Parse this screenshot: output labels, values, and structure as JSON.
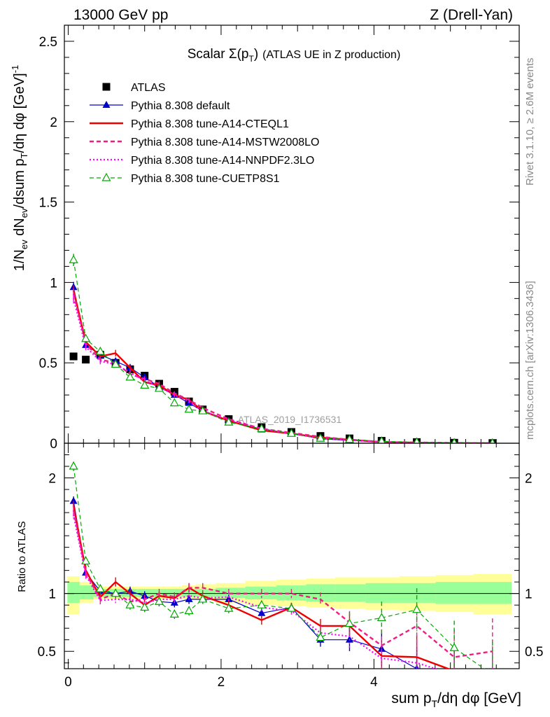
{
  "header": {
    "left": "13000 GeV pp",
    "right": "Z (Drell-Yan)"
  },
  "side_text": {
    "rivet": "Rivet 3.1.10, ≥ 2.6M events",
    "mcplots": "mcplots.cern.ch [arXiv:1306.3436]"
  },
  "chart_data": {
    "type": "line",
    "title": "Scalar Σ(p_T) (ATLAS UE in Z production)",
    "watermark": "ATLAS_2019_I1736531",
    "xlabel": "sum p_T/dη dφ [GeV]",
    "ylabel": "1/N_ev dN_ev/dsum p_T/dη dφ [GeV]^-1",
    "ratio_ylabel": "Ratio to ATLAS",
    "xlim": [
      -0.05,
      5.9
    ],
    "ylim": [
      0,
      2.6
    ],
    "ratio_ylim": [
      0.35,
      2.3
    ],
    "x_ticks": [
      "0",
      "2",
      "4"
    ],
    "y_ticks": [
      "0",
      "0.5",
      "1",
      "1.5",
      "2",
      "2.5"
    ],
    "ratio_y_ticks": [
      "0.5",
      "1",
      "2"
    ],
    "legend_position": "top-left",
    "x": [
      0.07,
      0.23,
      0.42,
      0.62,
      0.81,
      1.0,
      1.19,
      1.39,
      1.58,
      1.76,
      2.1,
      2.53,
      2.92,
      3.3,
      3.68,
      4.1,
      4.56,
      5.05,
      5.55
    ],
    "series": [
      {
        "name": "ATLAS",
        "style": "data",
        "color": "#000000",
        "values": [
          0.54,
          0.52,
          0.55,
          0.5,
          0.46,
          0.42,
          0.37,
          0.32,
          0.26,
          0.21,
          0.15,
          0.1,
          0.07,
          0.045,
          0.03,
          0.015,
          0.007,
          0.003,
          0.001
        ],
        "ratio": [
          1,
          1,
          1,
          1,
          1,
          1,
          1,
          1,
          1,
          1,
          1,
          1,
          1,
          1,
          1,
          1,
          1,
          1,
          1
        ]
      },
      {
        "name": "Pythia 8.308 default",
        "style": "blue-solid-triangle",
        "color": "#0000cc",
        "values": [
          0.97,
          0.61,
          0.55,
          0.51,
          0.47,
          0.41,
          0.35,
          0.3,
          0.25,
          0.2,
          0.14,
          0.085,
          0.062,
          0.028,
          0.018,
          0.008,
          0.0025,
          0.001,
          0.0003
        ],
        "ratio": [
          1.8,
          1.18,
          1.02,
          1.0,
          1.02,
          0.98,
          0.93,
          0.92,
          0.95,
          0.95,
          0.95,
          0.83,
          0.88,
          0.6,
          0.6,
          0.52,
          0.35,
          0.3,
          0.2
        ]
      },
      {
        "name": "Pythia 8.308 tune-A14-CTEQL1",
        "style": "red-solid",
        "color": "#ee0000",
        "values": [
          0.95,
          0.63,
          0.54,
          0.56,
          0.47,
          0.38,
          0.36,
          0.3,
          0.27,
          0.2,
          0.14,
          0.08,
          0.06,
          0.035,
          0.022,
          0.007,
          0.003,
          0.001,
          0.0003
        ],
        "ratio": [
          1.76,
          1.2,
          0.97,
          1.1,
          1.0,
          0.9,
          0.98,
          0.96,
          1.05,
          0.98,
          0.9,
          0.77,
          0.88,
          0.72,
          0.72,
          0.46,
          0.45,
          0.33,
          0.25
        ]
      },
      {
        "name": "Pythia 8.308 tune-A14-MSTW2008LO",
        "style": "magenta-dashed",
        "color": "#ee1e82",
        "values": [
          0.93,
          0.62,
          0.52,
          0.5,
          0.43,
          0.4,
          0.37,
          0.31,
          0.27,
          0.22,
          0.15,
          0.09,
          0.065,
          0.04,
          0.022,
          0.008,
          0.005,
          0.002,
          0.0005
        ],
        "ratio": [
          1.72,
          1.18,
          0.95,
          1.0,
          0.93,
          0.95,
          1.0,
          0.97,
          1.05,
          1.05,
          1.0,
          1.0,
          1.0,
          0.95,
          0.75,
          0.55,
          0.72,
          0.45,
          0.5
        ]
      },
      {
        "name": "Pythia 8.308 tune-A14-NNPDF2.3LO",
        "style": "magenta-dotted",
        "color": "#ff00ff",
        "values": [
          0.9,
          0.6,
          0.51,
          0.49,
          0.44,
          0.39,
          0.35,
          0.3,
          0.26,
          0.2,
          0.145,
          0.09,
          0.06,
          0.03,
          0.019,
          0.006,
          0.003,
          0.001,
          0.0003
        ],
        "ratio": [
          1.68,
          1.16,
          0.94,
          0.95,
          0.95,
          0.92,
          0.95,
          0.95,
          0.98,
          0.96,
          0.97,
          0.88,
          0.85,
          0.66,
          0.63,
          0.44,
          0.4,
          0.3,
          0.2
        ]
      },
      {
        "name": "Pythia 8.308 tune-CUETP8S1",
        "style": "green-dashed-open-triangle",
        "color": "#00aa00",
        "values": [
          1.14,
          0.65,
          0.57,
          0.49,
          0.41,
          0.36,
          0.34,
          0.25,
          0.21,
          0.2,
          0.13,
          0.09,
          0.06,
          0.03,
          0.023,
          0.012,
          0.006,
          0.0015,
          0.0003
        ],
        "ratio": [
          2.1,
          1.28,
          1.04,
          1.0,
          0.9,
          0.88,
          0.93,
          0.82,
          0.85,
          0.95,
          0.87,
          0.9,
          0.87,
          0.62,
          0.74,
          0.79,
          0.86,
          0.53,
          0.3
        ]
      }
    ],
    "uncertainty_band_ratio": {
      "inner_color": "#99ff99",
      "outer_color": "#ffff99",
      "inner": [
        [
          0.92,
          1.1
        ],
        [
          0.95,
          1.07
        ],
        [
          0.97,
          1.04
        ],
        [
          0.97,
          1.04
        ],
        [
          0.97,
          1.04
        ],
        [
          0.97,
          1.04
        ],
        [
          0.97,
          1.04
        ],
        [
          0.97,
          1.04
        ],
        [
          0.97,
          1.04
        ],
        [
          0.97,
          1.04
        ],
        [
          0.96,
          1.05
        ],
        [
          0.95,
          1.06
        ],
        [
          0.94,
          1.07
        ],
        [
          0.93,
          1.08
        ],
        [
          0.93,
          1.08
        ],
        [
          0.92,
          1.09
        ],
        [
          0.92,
          1.09
        ],
        [
          0.91,
          1.1
        ],
        [
          0.91,
          1.1
        ]
      ],
      "outer": [
        [
          0.82,
          1.15
        ],
        [
          0.92,
          1.1
        ],
        [
          0.95,
          1.06
        ],
        [
          0.95,
          1.06
        ],
        [
          0.95,
          1.06
        ],
        [
          0.95,
          1.06
        ],
        [
          0.95,
          1.06
        ],
        [
          0.95,
          1.06
        ],
        [
          0.95,
          1.07
        ],
        [
          0.94,
          1.08
        ],
        [
          0.92,
          1.09
        ],
        [
          0.9,
          1.11
        ],
        [
          0.89,
          1.12
        ],
        [
          0.88,
          1.13
        ],
        [
          0.87,
          1.14
        ],
        [
          0.86,
          1.14
        ],
        [
          0.85,
          1.15
        ],
        [
          0.84,
          1.16
        ],
        [
          0.82,
          1.17
        ]
      ]
    }
  }
}
